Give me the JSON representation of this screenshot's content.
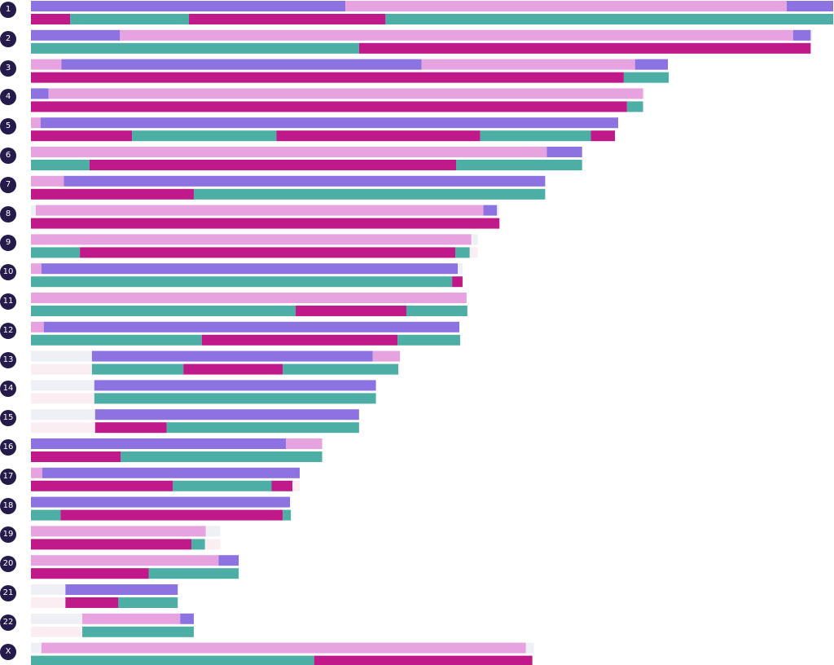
{
  "colors": {
    "violet": "#8d73e2",
    "pink": "#e6a3e0",
    "magenta": "#c01a8a",
    "teal": "#4daea6",
    "ghost_top": "#eef0f6",
    "ghost_bottom": "#fbeef2",
    "label_bg": "#241b4b"
  },
  "chart_data": {
    "type": "bar",
    "orientation": "horizontal",
    "stacked": true,
    "title": "",
    "xlabel": "",
    "ylabel": "",
    "xlim": [
      0,
      1000
    ],
    "rows": [
      {
        "label": "1",
        "top": [
          {
            "c": "violet",
            "v": 392
          },
          {
            "c": "pink",
            "v": 550
          },
          {
            "c": "violet",
            "v": 58
          }
        ],
        "bottom": [
          {
            "c": "magenta",
            "v": 49
          },
          {
            "c": "teal",
            "v": 148
          },
          {
            "c": "magenta",
            "v": 245
          },
          {
            "c": "teal",
            "v": 558
          }
        ]
      },
      {
        "label": "2",
        "top": [
          {
            "c": "violet",
            "v": 111
          },
          {
            "c": "pink",
            "v": 839
          },
          {
            "c": "violet",
            "v": 22
          },
          {
            "c": "ghost_top",
            "v": 2
          }
        ],
        "bottom": [
          {
            "c": "teal",
            "v": 409
          },
          {
            "c": "magenta",
            "v": 563
          }
        ]
      },
      {
        "label": "3",
        "top": [
          {
            "c": "pink",
            "v": 38
          },
          {
            "c": "violet",
            "v": 449
          },
          {
            "c": "pink",
            "v": 266
          },
          {
            "c": "violet",
            "v": 41
          }
        ],
        "bottom": [
          {
            "c": "magenta",
            "v": 739
          },
          {
            "c": "teal",
            "v": 56
          }
        ]
      },
      {
        "label": "4",
        "top": [
          {
            "c": "violet",
            "v": 22
          },
          {
            "c": "pink",
            "v": 741
          },
          {
            "c": "ghost_top",
            "v": 2
          }
        ],
        "bottom": [
          {
            "c": "magenta",
            "v": 743
          },
          {
            "c": "teal",
            "v": 20
          }
        ]
      },
      {
        "label": "5",
        "top": [
          {
            "c": "pink",
            "v": 12
          },
          {
            "c": "violet",
            "v": 720
          }
        ],
        "bottom": [
          {
            "c": "magenta",
            "v": 126
          },
          {
            "c": "teal",
            "v": 180
          },
          {
            "c": "magenta",
            "v": 254
          },
          {
            "c": "teal",
            "v": 138
          },
          {
            "c": "magenta",
            "v": 30
          }
        ]
      },
      {
        "label": "6",
        "top": [
          {
            "c": "pink",
            "v": 643
          },
          {
            "c": "violet",
            "v": 44
          }
        ],
        "bottom": [
          {
            "c": "teal",
            "v": 73
          },
          {
            "c": "magenta",
            "v": 457
          },
          {
            "c": "teal",
            "v": 157
          }
        ]
      },
      {
        "label": "7",
        "top": [
          {
            "c": "pink",
            "v": 41
          },
          {
            "c": "violet",
            "v": 600
          }
        ],
        "bottom": [
          {
            "c": "magenta",
            "v": 203
          },
          {
            "c": "teal",
            "v": 438
          }
        ]
      },
      {
        "label": "8",
        "top": [
          {
            "c": "ghost_top",
            "v": 6
          },
          {
            "c": "pink",
            "v": 558
          },
          {
            "c": "violet",
            "v": 17
          },
          {
            "c": "ghost_top",
            "v": 3
          }
        ],
        "bottom": [
          {
            "c": "magenta",
            "v": 584
          }
        ]
      },
      {
        "label": "9",
        "top": [
          {
            "c": "pink",
            "v": 549
          },
          {
            "c": "ghost_top",
            "v": 8
          }
        ],
        "bottom": [
          {
            "c": "teal",
            "v": 61
          },
          {
            "c": "magenta",
            "v": 468
          },
          {
            "c": "teal",
            "v": 18
          },
          {
            "c": "ghost_bottom",
            "v": 10
          }
        ]
      },
      {
        "label": "10",
        "top": [
          {
            "c": "pink",
            "v": 13
          },
          {
            "c": "violet",
            "v": 519
          },
          {
            "c": "ghost_top",
            "v": 6
          }
        ],
        "bottom": [
          {
            "c": "teal",
            "v": 525
          },
          {
            "c": "magenta",
            "v": 13
          }
        ]
      },
      {
        "label": "11",
        "top": [
          {
            "c": "pink",
            "v": 543
          }
        ],
        "bottom": [
          {
            "c": "teal",
            "v": 330
          },
          {
            "c": "magenta",
            "v": 138
          },
          {
            "c": "teal",
            "v": 76
          }
        ]
      },
      {
        "label": "12",
        "top": [
          {
            "c": "pink",
            "v": 16
          },
          {
            "c": "violet",
            "v": 518
          }
        ],
        "bottom": [
          {
            "c": "teal",
            "v": 213
          },
          {
            "c": "magenta",
            "v": 244
          },
          {
            "c": "teal",
            "v": 78
          }
        ]
      },
      {
        "label": "13",
        "top": [
          {
            "c": "ghost_top",
            "v": 76
          },
          {
            "c": "violet",
            "v": 350
          },
          {
            "c": "pink",
            "v": 34
          }
        ],
        "bottom": [
          {
            "c": "ghost_bottom",
            "v": 76
          },
          {
            "c": "teal",
            "v": 114
          },
          {
            "c": "magenta",
            "v": 124
          },
          {
            "c": "teal",
            "v": 144
          },
          {
            "c": "ghost_bottom",
            "v": 2
          }
        ]
      },
      {
        "label": "14",
        "top": [
          {
            "c": "ghost_top",
            "v": 79
          },
          {
            "c": "violet",
            "v": 351
          }
        ],
        "bottom": [
          {
            "c": "ghost_bottom",
            "v": 79
          },
          {
            "c": "teal",
            "v": 351
          }
        ]
      },
      {
        "label": "15",
        "top": [
          {
            "c": "ghost_top",
            "v": 80
          },
          {
            "c": "violet",
            "v": 329
          }
        ],
        "bottom": [
          {
            "c": "ghost_bottom",
            "v": 80
          },
          {
            "c": "magenta",
            "v": 89
          },
          {
            "c": "teal",
            "v": 240
          }
        ]
      },
      {
        "label": "16",
        "top": [
          {
            "c": "violet",
            "v": 318
          },
          {
            "c": "pink",
            "v": 45
          }
        ],
        "bottom": [
          {
            "c": "magenta",
            "v": 112
          },
          {
            "c": "teal",
            "v": 251
          }
        ]
      },
      {
        "label": "17",
        "top": [
          {
            "c": "pink",
            "v": 14
          },
          {
            "c": "violet",
            "v": 321
          }
        ],
        "bottom": [
          {
            "c": "magenta",
            "v": 177
          },
          {
            "c": "teal",
            "v": 123
          },
          {
            "c": "magenta",
            "v": 26
          },
          {
            "c": "ghost_bottom",
            "v": 9
          }
        ]
      },
      {
        "label": "18",
        "top": [
          {
            "c": "violet",
            "v": 323
          }
        ],
        "bottom": [
          {
            "c": "teal",
            "v": 37
          },
          {
            "c": "magenta",
            "v": 277
          },
          {
            "c": "teal",
            "v": 10
          }
        ]
      },
      {
        "label": "19",
        "top": [
          {
            "c": "pink",
            "v": 218
          },
          {
            "c": "ghost_top",
            "v": 18
          }
        ],
        "bottom": [
          {
            "c": "magenta",
            "v": 200
          },
          {
            "c": "teal",
            "v": 17
          },
          {
            "c": "ghost_bottom",
            "v": 19
          }
        ]
      },
      {
        "label": "20",
        "top": [
          {
            "c": "pink",
            "v": 234
          },
          {
            "c": "violet",
            "v": 25
          }
        ],
        "bottom": [
          {
            "c": "magenta",
            "v": 147
          },
          {
            "c": "teal",
            "v": 112
          }
        ]
      },
      {
        "label": "21",
        "top": [
          {
            "c": "ghost_top",
            "v": 43
          },
          {
            "c": "violet",
            "v": 140
          }
        ],
        "bottom": [
          {
            "c": "ghost_bottom",
            "v": 43
          },
          {
            "c": "magenta",
            "v": 66
          },
          {
            "c": "teal",
            "v": 74
          }
        ]
      },
      {
        "label": "22",
        "top": [
          {
            "c": "ghost_top",
            "v": 64
          },
          {
            "c": "pink",
            "v": 122
          },
          {
            "c": "violet",
            "v": 17
          }
        ],
        "bottom": [
          {
            "c": "ghost_bottom",
            "v": 64
          },
          {
            "c": "teal",
            "v": 139
          }
        ]
      },
      {
        "label": "X",
        "top": [
          {
            "c": "ghost_top",
            "v": 13
          },
          {
            "c": "pink",
            "v": 604
          },
          {
            "c": "ghost_top",
            "v": 10
          }
        ],
        "bottom": [
          {
            "c": "teal",
            "v": 353
          },
          {
            "c": "magenta",
            "v": 272
          }
        ]
      }
    ]
  }
}
